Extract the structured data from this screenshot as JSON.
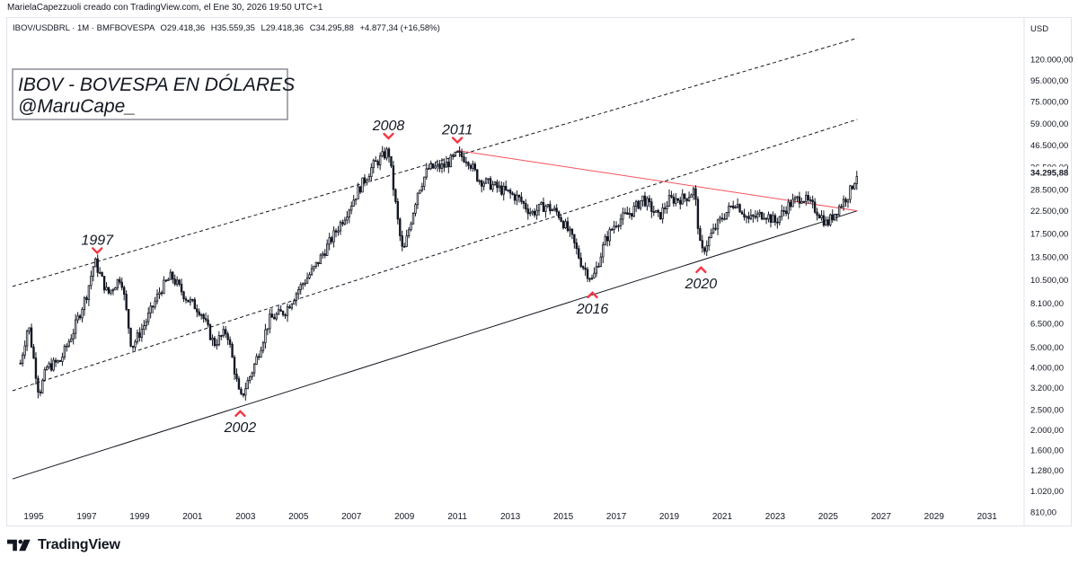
{
  "header": {
    "credit": "MarielaCapezzuoli creado con TradingView.com, el Ene 30, 2026 19:50 UTC+1"
  },
  "footer": {
    "brand": "TradingView"
  },
  "chart_data": {
    "type": "candlestick",
    "symbol_info": "IBOV/USDBRL · 1M · BMFBOVESPA",
    "ohlc_readout": {
      "open": "O29.418,36",
      "high": "H35.559,35",
      "low": "L29.418,36",
      "close": "C34.295,88",
      "change": "+4.877,34 (+16,58%)"
    },
    "title": "IBOV - BOVESPA EN DÓLARES",
    "subtitle": "@MaruCape_",
    "currency": "USD",
    "y_scale": "log",
    "ylim": [
      700,
      190000
    ],
    "xlim": [
      1994.0,
      2032.4
    ],
    "y_ticks": [
      {
        "v": 120000,
        "label": "120.000,00"
      },
      {
        "v": 95000,
        "label": "95.000,00"
      },
      {
        "v": 75000,
        "label": "75.000,00"
      },
      {
        "v": 59000,
        "label": "59.000,00"
      },
      {
        "v": 46500,
        "label": "46.500,00"
      },
      {
        "v": 36500,
        "label": "36.500,00"
      },
      {
        "v": 28500,
        "label": "28.500,00"
      },
      {
        "v": 22500,
        "label": "22.500,00"
      },
      {
        "v": 17500,
        "label": "17.500,00"
      },
      {
        "v": 13500,
        "label": "13.500,00"
      },
      {
        "v": 10500,
        "label": "10.500,00"
      },
      {
        "v": 8100,
        "label": "8.100,00"
      },
      {
        "v": 6500,
        "label": "6.500,00"
      },
      {
        "v": 5000,
        "label": "5.000,00"
      },
      {
        "v": 4000,
        "label": "4.000,00"
      },
      {
        "v": 3200,
        "label": "3.200,00"
      },
      {
        "v": 2500,
        "label": "2.500,00"
      },
      {
        "v": 2000,
        "label": "2.000,00"
      },
      {
        "v": 1600,
        "label": "1.600,00"
      },
      {
        "v": 1280,
        "label": "1.280,00"
      },
      {
        "v": 1020,
        "label": "1.020,00"
      },
      {
        "v": 810,
        "label": "810,00"
      }
    ],
    "last_price": {
      "v": 34295.88,
      "label": "34.295,88",
      "color": "#131722"
    },
    "x_ticks": [
      "1995",
      "1997",
      "1999",
      "2001",
      "2003",
      "2005",
      "2007",
      "2009",
      "2011",
      "2013",
      "2015",
      "2017",
      "2019",
      "2021",
      "2023",
      "2025",
      "2027",
      "2029",
      "2031"
    ],
    "price_series": [
      [
        1994.5,
        4200
      ],
      [
        1994.8,
        6500
      ],
      [
        1995.2,
        3000
      ],
      [
        1995.5,
        4000
      ],
      [
        1996.0,
        4300
      ],
      [
        1996.5,
        6000
      ],
      [
        1997.0,
        9000
      ],
      [
        1997.3,
        13000
      ],
      [
        1997.8,
        9000
      ],
      [
        1998.3,
        11000
      ],
      [
        1998.7,
        5000
      ],
      [
        1999.2,
        6500
      ],
      [
        1999.8,
        9500
      ],
      [
        2000.2,
        11000
      ],
      [
        2000.8,
        8500
      ],
      [
        2001.3,
        7500
      ],
      [
        2001.8,
        5200
      ],
      [
        2002.3,
        6000
      ],
      [
        2002.8,
        2800
      ],
      [
        2003.3,
        4000
      ],
      [
        2003.9,
        6800
      ],
      [
        2004.5,
        7500
      ],
      [
        2005.0,
        9500
      ],
      [
        2005.6,
        12000
      ],
      [
        2006.3,
        17000
      ],
      [
        2006.8,
        22000
      ],
      [
        2007.3,
        29000
      ],
      [
        2007.8,
        37000
      ],
      [
        2008.4,
        44000
      ],
      [
        2008.8,
        18000
      ],
      [
        2008.95,
        14000
      ],
      [
        2009.5,
        28000
      ],
      [
        2009.9,
        36000
      ],
      [
        2010.5,
        37000
      ],
      [
        2011.0,
        42000
      ],
      [
        2011.4,
        40000
      ],
      [
        2011.8,
        32000
      ],
      [
        2012.3,
        30000
      ],
      [
        2012.8,
        28000
      ],
      [
        2013.3,
        26000
      ],
      [
        2013.8,
        22000
      ],
      [
        2014.3,
        24000
      ],
      [
        2014.8,
        22000
      ],
      [
        2015.3,
        17000
      ],
      [
        2015.7,
        12500
      ],
      [
        2016.1,
        10500
      ],
      [
        2016.6,
        16500
      ],
      [
        2017.0,
        20000
      ],
      [
        2017.6,
        22500
      ],
      [
        2018.0,
        26000
      ],
      [
        2018.6,
        21000
      ],
      [
        2019.0,
        25500
      ],
      [
        2019.6,
        26000
      ],
      [
        2019.95,
        28500
      ],
      [
        2020.2,
        14000
      ],
      [
        2020.6,
        17500
      ],
      [
        2021.0,
        21000
      ],
      [
        2021.5,
        25000
      ],
      [
        2022.0,
        20500
      ],
      [
        2022.6,
        22000
      ],
      [
        2023.0,
        20000
      ],
      [
        2023.5,
        24000
      ],
      [
        2024.0,
        26500
      ],
      [
        2024.6,
        22500
      ],
      [
        2024.95,
        19500
      ],
      [
        2025.4,
        23500
      ],
      [
        2025.8,
        27500
      ],
      [
        2026.1,
        34295
      ]
    ],
    "trendlines": [
      {
        "name": "upper-channel",
        "style": "dashed",
        "color": "#131722",
        "from": [
          1994.2,
          9800
        ],
        "to": [
          2026.1,
          152000
        ]
      },
      {
        "name": "mid-channel",
        "style": "dashed",
        "color": "#131722",
        "from": [
          1994.2,
          3100
        ],
        "to": [
          2026.1,
          62000
        ]
      },
      {
        "name": "lower-support",
        "style": "solid",
        "color": "#131722",
        "from": [
          1994.2,
          1170
        ],
        "to": [
          2026.1,
          22600
        ]
      },
      {
        "name": "resistance",
        "style": "solid",
        "color": "#f7525f",
        "from": [
          2011.0,
          44000
        ],
        "to": [
          2026.1,
          22600
        ]
      }
    ],
    "annotations": [
      {
        "label": "1997",
        "x": 1997.4,
        "y": 13000,
        "marker": "down",
        "text_position": "above"
      },
      {
        "label": "2002",
        "x": 2002.8,
        "y": 2700,
        "marker": "up",
        "text_position": "below"
      },
      {
        "label": "2008",
        "x": 2008.4,
        "y": 46000,
        "marker": "down",
        "text_position": "above"
      },
      {
        "label": "2011",
        "x": 2011.0,
        "y": 44000,
        "marker": "down",
        "text_position": "above"
      },
      {
        "label": "2016",
        "x": 2016.1,
        "y": 10000,
        "marker": "up",
        "text_position": "below"
      },
      {
        "label": "2020",
        "x": 2020.2,
        "y": 13200,
        "marker": "up",
        "text_position": "below"
      }
    ],
    "marker_color": "#f23645"
  }
}
